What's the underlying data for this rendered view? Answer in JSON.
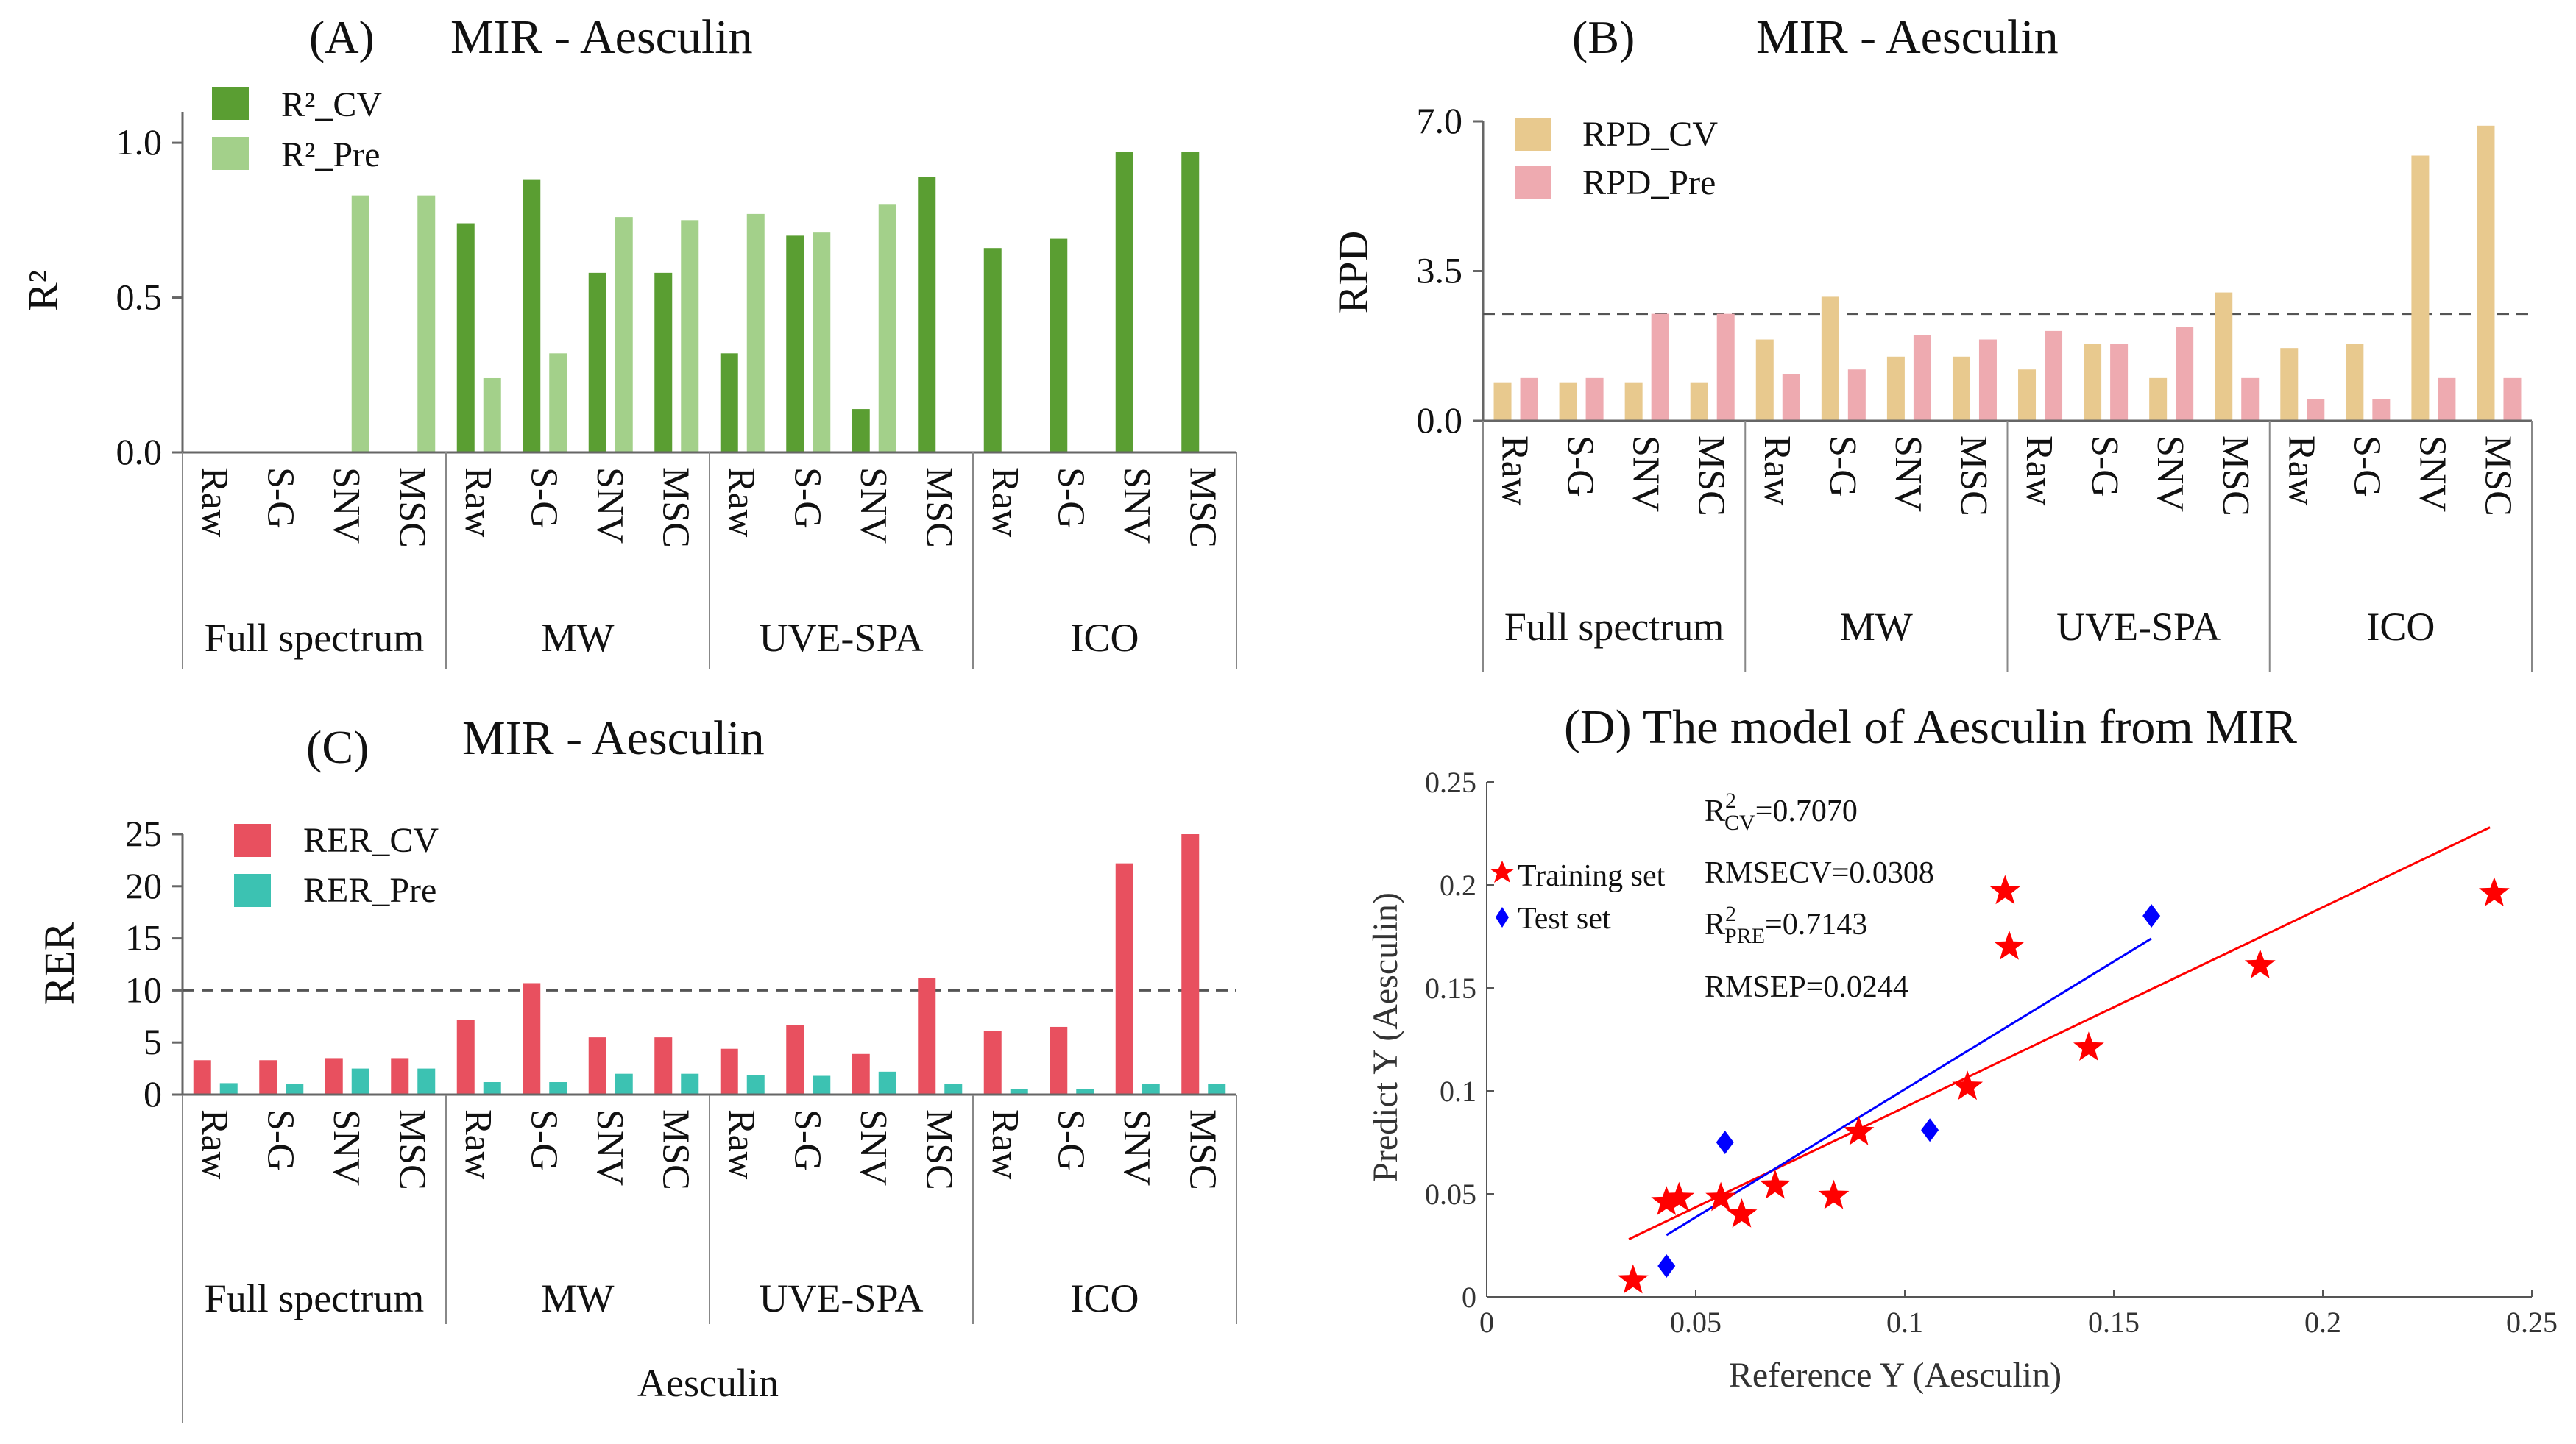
{
  "chart_data": [
    {
      "panel": "A",
      "type": "bar",
      "panel_letter": "(A)",
      "title": "MIR - Aesculin",
      "ylabel": "R²",
      "ylim": [
        0,
        1.1
      ],
      "yticks": [
        "0.0",
        "0.5",
        "1.0"
      ],
      "categories": [
        "Raw",
        "S-G",
        "SNV",
        "MSC",
        "Raw",
        "S-G",
        "SNV",
        "MSC",
        "Raw",
        "S-G",
        "SNV",
        "MSC",
        "Raw",
        "S-G",
        "SNV",
        "MSC"
      ],
      "groups": [
        "Full spectrum",
        "MW",
        "UVE-SPA",
        "ICO"
      ],
      "series": [
        {
          "name": "R²_CV",
          "color": "#5a9e32",
          "values": [
            0,
            0,
            0,
            0,
            0.74,
            0.88,
            0.58,
            0.58,
            0.32,
            0.7,
            0.14,
            0.89,
            0.66,
            0.69,
            0.97,
            0.97
          ]
        },
        {
          "name": "R²_Pre",
          "color": "#a3d08a",
          "values": [
            0,
            0,
            0.83,
            0.83,
            0.24,
            0.32,
            0.76,
            0.75,
            0.77,
            0.71,
            0.8,
            0,
            0,
            0,
            0,
            0
          ]
        }
      ]
    },
    {
      "panel": "B",
      "type": "bar",
      "panel_letter": "(B)",
      "title": "MIR - Aesculin",
      "ylabel": "RPD",
      "ylim": [
        0,
        7.0
      ],
      "yticks": [
        "0.0",
        "3.5",
        "7.0"
      ],
      "reference_line": 2.5,
      "categories": [
        "Raw",
        "S-G",
        "SNV",
        "MSC",
        "Raw",
        "S-G",
        "SNV",
        "MSC",
        "Raw",
        "S-G",
        "SNV",
        "MSC",
        "Raw",
        "S-G",
        "SNV",
        "MSC"
      ],
      "groups": [
        "Full spectrum",
        "MW",
        "UVE-SPA",
        "ICO"
      ],
      "series": [
        {
          "name": "RPD_CV",
          "color": "#e8c98e",
          "values": [
            0.9,
            0.9,
            0.9,
            0.9,
            1.9,
            2.9,
            1.5,
            1.5,
            1.2,
            1.8,
            1.0,
            3.0,
            1.7,
            1.8,
            6.2,
            6.9
          ]
        },
        {
          "name": "RPD_Pre",
          "color": "#eeaab0",
          "values": [
            1.0,
            1.0,
            2.5,
            2.5,
            1.1,
            1.2,
            2.0,
            1.9,
            2.1,
            1.8,
            2.2,
            1.0,
            0.5,
            0.5,
            1.0,
            1.0
          ]
        }
      ]
    },
    {
      "panel": "C",
      "type": "bar",
      "panel_letter": "(C)",
      "title": "MIR - Aesculin",
      "ylabel": "RER",
      "xlabel": "Aesculin",
      "ylim": [
        0,
        25
      ],
      "yticks": [
        "0",
        "5",
        "10",
        "15",
        "20",
        "25"
      ],
      "reference_line": 10,
      "categories": [
        "Raw",
        "S-G",
        "SNV",
        "MSC",
        "Raw",
        "S-G",
        "SNV",
        "MSC",
        "Raw",
        "S-G",
        "SNV",
        "MSC",
        "Raw",
        "S-G",
        "SNV",
        "MSC"
      ],
      "groups": [
        "Full spectrum",
        "MW",
        "UVE-SPA",
        "ICO"
      ],
      "series": [
        {
          "name": "RER_CV",
          "color": "#e8505f",
          "values": [
            3.3,
            3.3,
            3.5,
            3.5,
            7.2,
            10.7,
            5.5,
            5.5,
            4.4,
            6.7,
            3.9,
            11.2,
            6.1,
            6.5,
            22.2,
            25.0
          ]
        },
        {
          "name": "RER_Pre",
          "color": "#3cc2b2",
          "values": [
            1.1,
            1.0,
            2.5,
            2.5,
            1.2,
            1.2,
            2.0,
            2.0,
            1.9,
            1.8,
            2.2,
            1.0,
            0.5,
            0.5,
            1.0,
            1.0
          ]
        }
      ]
    },
    {
      "panel": "D",
      "type": "scatter",
      "title": "(D) The model of Aesculin from MIR",
      "xlabel": "Reference Y (Aesculin)",
      "ylabel": "Predict Y (Aesculin)",
      "xlim": [
        0,
        0.25
      ],
      "ylim": [
        0,
        0.25
      ],
      "xticks": [
        "0",
        "0.05",
        "0.1",
        "0.15",
        "0.2",
        "0.25"
      ],
      "yticks": [
        "0",
        "0.05",
        "0.1",
        "0.15",
        "0.2",
        "0.25"
      ],
      "series": [
        {
          "name": "Training set",
          "marker": "star",
          "color": "#ff0000",
          "x": [
            0.035,
            0.043,
            0.046,
            0.056,
            0.061,
            0.069,
            0.083,
            0.089,
            0.115,
            0.124,
            0.125,
            0.144,
            0.185,
            0.241
          ],
          "y": [
            0.008,
            0.046,
            0.048,
            0.048,
            0.04,
            0.054,
            0.049,
            0.08,
            0.102,
            0.197,
            0.17,
            0.121,
            0.161,
            0.196
          ]
        },
        {
          "name": "Test set",
          "marker": "diamond",
          "color": "#0000ff",
          "x": [
            0.043,
            0.057,
            0.106,
            0.159
          ],
          "y": [
            0.015,
            0.075,
            0.081,
            0.185
          ]
        }
      ],
      "fit_lines": [
        {
          "series": "Training set",
          "color": "#ff0000",
          "x": [
            0.034,
            0.24
          ],
          "y": [
            0.028,
            0.228
          ]
        },
        {
          "series": "Test set",
          "color": "#0000ff",
          "x": [
            0.043,
            0.159
          ],
          "y": [
            0.03,
            0.174
          ]
        }
      ],
      "stats": {
        "r2cv_label": "R",
        "r2cv_sup": "2",
        "r2cv_sub": "CV",
        "r2cv_value": "=0.7070",
        "rmsecv": "RMSECV=0.0308",
        "r2pre_label": "R",
        "r2pre_sup": "2",
        "r2pre_sub": "PRE",
        "r2pre_value": "=0.7143",
        "rmsep": "RMSEP=0.0244"
      }
    }
  ]
}
